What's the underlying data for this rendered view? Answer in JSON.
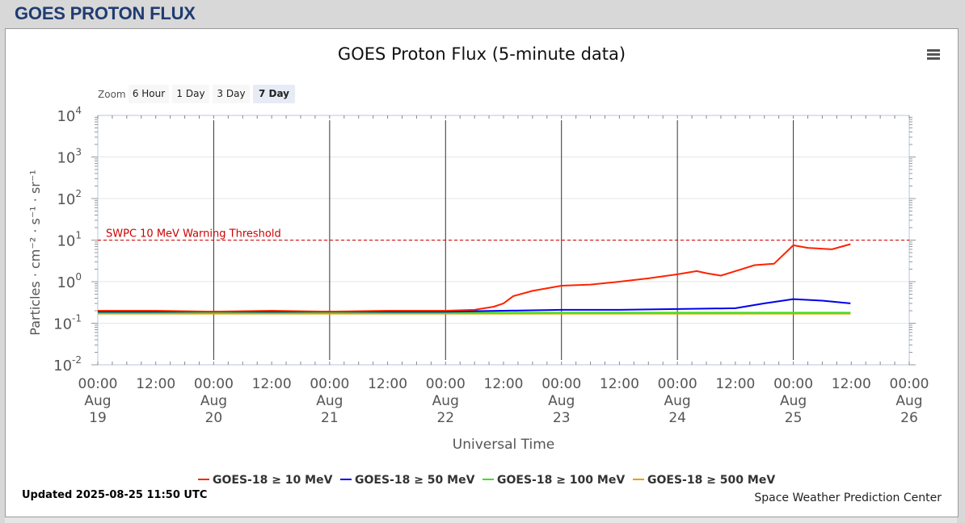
{
  "page": {
    "title": "GOES PROTON FLUX"
  },
  "chart": {
    "zoom_label": "Zoom",
    "zoom_buttons": [
      "6 Hour",
      "1 Day",
      "3 Day",
      "7 Day"
    ],
    "zoom_selected": "7 Day",
    "updated": "Updated 2025-08-25 11:50 UTC",
    "credit": "Space Weather Prediction Center",
    "menu_icon": "hamburger-menu-icon",
    "colors": {
      "grid": "#e6e6e6",
      "axis": "#b8c4dc",
      "threshold": "#cc0000",
      "day_line": "#333333"
    }
  },
  "chart_data": {
    "type": "line",
    "title": "GOES Proton Flux (5-minute data)",
    "xlabel": "Universal Time",
    "ylabel": "Particles · cm⁻² · s⁻¹ · sr⁻¹",
    "yscale": "log",
    "ylim": [
      0.01,
      10000
    ],
    "xlim": [
      "2025-08-19 00:00",
      "2025-08-26 00:00"
    ],
    "grid": true,
    "legend_position": "bottom",
    "y_ticks": [
      {
        "base": "10",
        "exp": "-2"
      },
      {
        "base": "10",
        "exp": "-1"
      },
      {
        "base": "10",
        "exp": "0"
      },
      {
        "base": "10",
        "exp": "1"
      },
      {
        "base": "10",
        "exp": "2"
      },
      {
        "base": "10",
        "exp": "3"
      },
      {
        "base": "10",
        "exp": "4"
      }
    ],
    "x_ticks": [
      {
        "time": "00:00",
        "month": "Aug",
        "day": "19"
      },
      {
        "time": "12:00",
        "month": "",
        "day": ""
      },
      {
        "time": "00:00",
        "month": "Aug",
        "day": "20"
      },
      {
        "time": "12:00",
        "month": "",
        "day": ""
      },
      {
        "time": "00:00",
        "month": "Aug",
        "day": "21"
      },
      {
        "time": "12:00",
        "month": "",
        "day": ""
      },
      {
        "time": "00:00",
        "month": "Aug",
        "day": "22"
      },
      {
        "time": "12:00",
        "month": "",
        "day": ""
      },
      {
        "time": "00:00",
        "month": "Aug",
        "day": "23"
      },
      {
        "time": "12:00",
        "month": "",
        "day": ""
      },
      {
        "time": "00:00",
        "month": "Aug",
        "day": "24"
      },
      {
        "time": "12:00",
        "month": "",
        "day": ""
      },
      {
        "time": "00:00",
        "month": "Aug",
        "day": "25"
      },
      {
        "time": "12:00",
        "month": "",
        "day": ""
      },
      {
        "time": "00:00",
        "month": "Aug",
        "day": "26"
      }
    ],
    "threshold": {
      "label": "SWPC 10 MeV Warning Threshold",
      "value": 10,
      "color": "#cc0000"
    },
    "series": [
      {
        "name": "GOES-18 ≥ 10 MeV",
        "color": "#ff2200",
        "points": [
          [
            "2025-08-19 00:00",
            0.2
          ],
          [
            "2025-08-19 12:00",
            0.2
          ],
          [
            "2025-08-20 00:00",
            0.19
          ],
          [
            "2025-08-20 12:00",
            0.2
          ],
          [
            "2025-08-21 00:00",
            0.19
          ],
          [
            "2025-08-21 12:00",
            0.2
          ],
          [
            "2025-08-22 00:00",
            0.2
          ],
          [
            "2025-08-22 06:00",
            0.21
          ],
          [
            "2025-08-22 10:00",
            0.25
          ],
          [
            "2025-08-22 12:00",
            0.3
          ],
          [
            "2025-08-22 14:00",
            0.45
          ],
          [
            "2025-08-22 18:00",
            0.6
          ],
          [
            "2025-08-23 00:00",
            0.8
          ],
          [
            "2025-08-23 06:00",
            0.85
          ],
          [
            "2025-08-23 12:00",
            1.0
          ],
          [
            "2025-08-23 18:00",
            1.2
          ],
          [
            "2025-08-24 00:00",
            1.5
          ],
          [
            "2025-08-24 04:00",
            1.8
          ],
          [
            "2025-08-24 06:00",
            1.6
          ],
          [
            "2025-08-24 09:00",
            1.4
          ],
          [
            "2025-08-24 12:00",
            1.8
          ],
          [
            "2025-08-24 16:00",
            2.5
          ],
          [
            "2025-08-24 20:00",
            2.7
          ],
          [
            "2025-08-25 00:00",
            7.5
          ],
          [
            "2025-08-25 03:00",
            6.5
          ],
          [
            "2025-08-25 08:00",
            6.0
          ],
          [
            "2025-08-25 11:50",
            8.0
          ]
        ]
      },
      {
        "name": "GOES-18 ≥ 50 MeV",
        "color": "#0000ee",
        "points": [
          [
            "2025-08-19 00:00",
            0.19
          ],
          [
            "2025-08-20 00:00",
            0.19
          ],
          [
            "2025-08-21 00:00",
            0.19
          ],
          [
            "2025-08-22 00:00",
            0.19
          ],
          [
            "2025-08-22 12:00",
            0.2
          ],
          [
            "2025-08-23 00:00",
            0.21
          ],
          [
            "2025-08-23 12:00",
            0.21
          ],
          [
            "2025-08-24 00:00",
            0.22
          ],
          [
            "2025-08-24 12:00",
            0.23
          ],
          [
            "2025-08-24 18:00",
            0.3
          ],
          [
            "2025-08-25 00:00",
            0.38
          ],
          [
            "2025-08-25 06:00",
            0.35
          ],
          [
            "2025-08-25 11:50",
            0.3
          ]
        ]
      },
      {
        "name": "GOES-18 ≥ 100 MeV",
        "color": "#44dd22",
        "points": [
          [
            "2025-08-19 00:00",
            0.18
          ],
          [
            "2025-08-20 00:00",
            0.18
          ],
          [
            "2025-08-21 00:00",
            0.18
          ],
          [
            "2025-08-22 00:00",
            0.18
          ],
          [
            "2025-08-23 00:00",
            0.18
          ],
          [
            "2025-08-24 00:00",
            0.18
          ],
          [
            "2025-08-25 00:00",
            0.18
          ],
          [
            "2025-08-25 11:50",
            0.18
          ]
        ]
      },
      {
        "name": "GOES-18 ≥ 500 MeV",
        "color": "#e8a000",
        "points": [
          [
            "2025-08-19 00:00",
            0.17
          ],
          [
            "2025-08-20 00:00",
            0.17
          ],
          [
            "2025-08-21 00:00",
            0.17
          ],
          [
            "2025-08-22 00:00",
            0.17
          ],
          [
            "2025-08-23 00:00",
            0.17
          ],
          [
            "2025-08-24 00:00",
            0.17
          ],
          [
            "2025-08-25 00:00",
            0.17
          ],
          [
            "2025-08-25 11:50",
            0.17
          ]
        ]
      }
    ]
  }
}
